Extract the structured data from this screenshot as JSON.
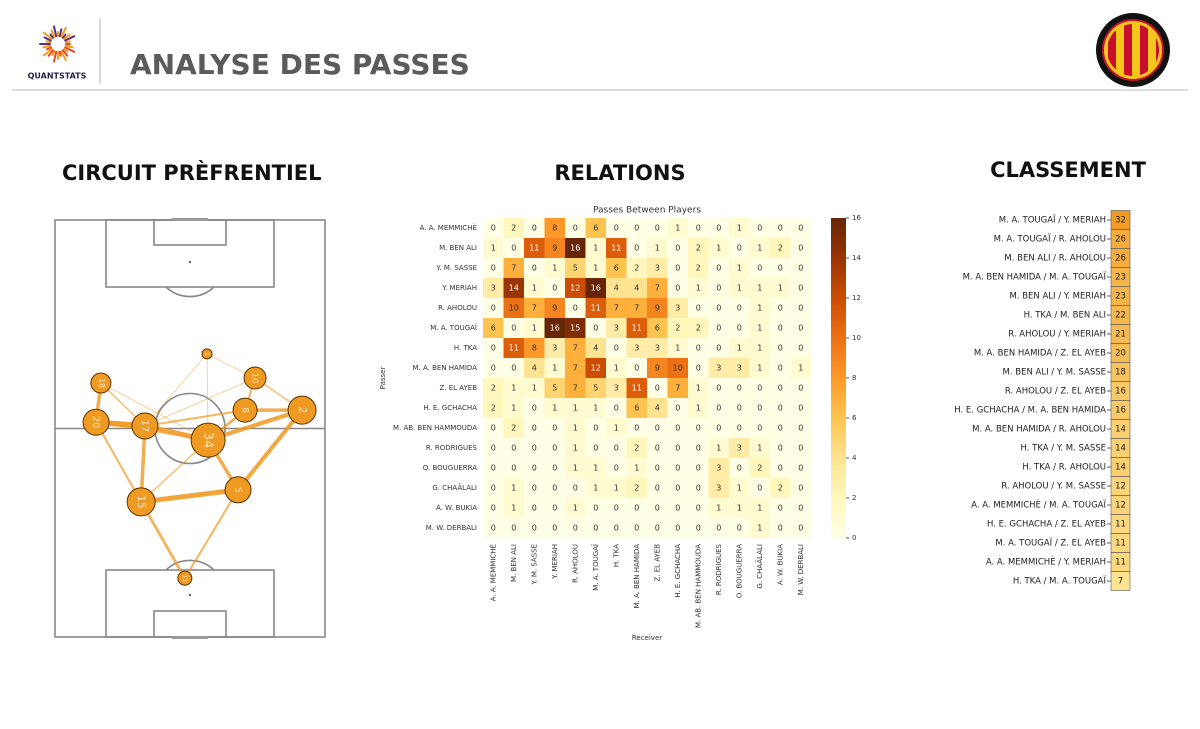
{
  "header": {
    "brand": "QUANTSTATS",
    "title": "ANALYSE DES PASSES"
  },
  "chart_data": [
    {
      "type": "network",
      "title": "CIRCUIT PRÈFRENTIEL",
      "color": "#ef9a22",
      "nodes": [
        {
          "label": 1,
          "x": 56.3,
          "y": 32.1,
          "size": 5
        },
        {
          "label": 10,
          "x": 74.1,
          "y": 37.9,
          "size": 11
        },
        {
          "label": 18,
          "x": 17.0,
          "y": 39.1,
          "size": 10
        },
        {
          "label": 8,
          "x": 70.4,
          "y": 45.6,
          "size": 12
        },
        {
          "label": 2,
          "x": 91.5,
          "y": 45.6,
          "size": 14
        },
        {
          "label": 20,
          "x": 15.2,
          "y": 48.5,
          "size": 13
        },
        {
          "label": 17,
          "x": 33.3,
          "y": 49.4,
          "size": 13
        },
        {
          "label": 34,
          "x": 56.7,
          "y": 52.8,
          "size": 17
        },
        {
          "label": 5,
          "x": 67.8,
          "y": 64.7,
          "size": 13
        },
        {
          "label": 15,
          "x": 31.9,
          "y": 67.6,
          "size": 14
        },
        {
          "label": 11,
          "x": 48.1,
          "y": 85.9,
          "size": 7
        }
      ],
      "edges": [
        {
          "source": 5,
          "target": 6,
          "weight": 8
        },
        {
          "source": 2,
          "target": 5,
          "weight": 5
        },
        {
          "source": 6,
          "target": 7,
          "weight": 7
        },
        {
          "source": 7,
          "target": 4,
          "weight": 6
        },
        {
          "source": 3,
          "target": 4,
          "weight": 5
        },
        {
          "source": 4,
          "target": 8,
          "weight": 6
        },
        {
          "source": 7,
          "target": 8,
          "weight": 5
        },
        {
          "source": 8,
          "target": 9,
          "weight": 7
        },
        {
          "source": 9,
          "target": 6,
          "weight": 5
        },
        {
          "source": 9,
          "target": 10,
          "weight": 4
        },
        {
          "source": 10,
          "target": 8,
          "weight": 3
        },
        {
          "source": 5,
          "target": 9,
          "weight": 3
        },
        {
          "source": 6,
          "target": 3,
          "weight": 3
        },
        {
          "source": 1,
          "target": 3,
          "weight": 3
        },
        {
          "source": 1,
          "target": 4,
          "weight": 2
        },
        {
          "source": 0,
          "target": 1,
          "weight": 1
        },
        {
          "source": 0,
          "target": 6,
          "weight": 1
        },
        {
          "source": 2,
          "target": 6,
          "weight": 2
        },
        {
          "source": 2,
          "target": 7,
          "weight": 1
        },
        {
          "source": 5,
          "target": 7,
          "weight": 2
        },
        {
          "source": 9,
          "target": 7,
          "weight": 2
        },
        {
          "source": 3,
          "target": 7,
          "weight": 4
        },
        {
          "source": 1,
          "target": 6,
          "weight": 1
        },
        {
          "source": 0,
          "target": 7,
          "weight": 1
        }
      ]
    },
    {
      "type": "heatmap",
      "title": "RELATIONS",
      "subtitle": "Passes Between Players",
      "xlabel": "Receiver",
      "ylabel": "Passer",
      "categories": [
        "A. A. MEMMICHÈ",
        "M. BEN ALI",
        "Y. M. SASSE",
        "Y. MERIAH",
        "R. AHOLOU",
        "M. A. TOUGAÏ",
        "H. TKA",
        "M. A. BEN HAMIDA",
        "Z. EL AYEB",
        "H. E. GCHACHA",
        "M. AB. BEN HAMMOUDA",
        "R. RODRIGUES",
        "O. BOUGUERRA",
        "G. CHAÂLALI",
        "A. W. BUKIA",
        "M. W. DERBALI"
      ],
      "matrix": [
        [
          0,
          2,
          0,
          8,
          0,
          6,
          0,
          0,
          0,
          1,
          0,
          0,
          1,
          0,
          0,
          0
        ],
        [
          1,
          0,
          11,
          9,
          16,
          1,
          11,
          0,
          1,
          0,
          2,
          1,
          0,
          1,
          2,
          0
        ],
        [
          0,
          7,
          0,
          1,
          5,
          1,
          6,
          2,
          3,
          0,
          2,
          0,
          1,
          0,
          0,
          0
        ],
        [
          3,
          14,
          1,
          0,
          12,
          16,
          4,
          4,
          7,
          0,
          1,
          0,
          1,
          1,
          1,
          0
        ],
        [
          0,
          10,
          7,
          9,
          0,
          11,
          7,
          7,
          9,
          3,
          0,
          0,
          0,
          1,
          0,
          0
        ],
        [
          6,
          0,
          1,
          16,
          15,
          0,
          3,
          11,
          6,
          2,
          2,
          0,
          0,
          1,
          0,
          0
        ],
        [
          0,
          11,
          8,
          3,
          7,
          4,
          0,
          3,
          3,
          1,
          0,
          0,
          1,
          1,
          0,
          0
        ],
        [
          0,
          0,
          4,
          1,
          7,
          12,
          1,
          0,
          9,
          10,
          0,
          3,
          3,
          1,
          0,
          1
        ],
        [
          2,
          1,
          1,
          5,
          7,
          5,
          3,
          11,
          0,
          7,
          1,
          0,
          0,
          0,
          0,
          0
        ],
        [
          2,
          1,
          0,
          1,
          1,
          1,
          0,
          6,
          4,
          0,
          1,
          0,
          0,
          0,
          0,
          0
        ],
        [
          0,
          2,
          0,
          0,
          1,
          0,
          1,
          0,
          0,
          0,
          0,
          0,
          0,
          0,
          0,
          0
        ],
        [
          0,
          0,
          0,
          0,
          1,
          0,
          0,
          2,
          0,
          0,
          0,
          1,
          3,
          1,
          0,
          0
        ],
        [
          0,
          0,
          0,
          0,
          1,
          1,
          0,
          1,
          0,
          0,
          0,
          3,
          0,
          2,
          0,
          0
        ],
        [
          0,
          1,
          0,
          0,
          0,
          1,
          1,
          2,
          0,
          0,
          0,
          3,
          1,
          0,
          2,
          0
        ],
        [
          0,
          1,
          0,
          0,
          1,
          0,
          0,
          0,
          0,
          0,
          0,
          1,
          1,
          1,
          0,
          0
        ],
        [
          0,
          0,
          0,
          0,
          0,
          0,
          0,
          0,
          0,
          0,
          0,
          0,
          0,
          1,
          0,
          0
        ]
      ],
      "colors": [
        "#ffffe5",
        "#fff7bc",
        "#fee391",
        "#fec44f",
        "#fe9929",
        "#ec7014",
        "#cc4c02",
        "#993404",
        "#662506"
      ],
      "clim": [
        0,
        16
      ],
      "cticks": [
        0,
        2,
        4,
        6,
        8,
        10,
        12,
        14,
        16
      ]
    },
    {
      "type": "ranking",
      "title": "CLASSEMENT",
      "categories": [
        "M. A. TOUGAÏ / Y. MERIAH",
        "M. A. TOUGAÏ / R. AHOLOU",
        "M. BEN ALI / R. AHOLOU",
        "M. A. BEN HAMIDA / M. A. TOUGAÏ",
        "M. BEN ALI / Y. MERIAH",
        "H. TKA / M. BEN ALI",
        "R. AHOLOU / Y. MERIAH",
        "M. A. BEN HAMIDA / Z. EL AYEB",
        "M. BEN ALI / Y. M. SASSE",
        "R. AHOLOU / Z. EL AYEB",
        "H. E. GCHACHA / M. A. BEN HAMIDA",
        "M. A. BEN HAMIDA / R. AHOLOU",
        "H. TKA / Y. M. SASSE",
        "H. TKA / R. AHOLOU",
        "R. AHOLOU / Y. M. SASSE",
        "A. A. MEMMICHÈ / M. A. TOUGAÏ",
        "H. E. GCHACHA / Z. EL AYEB",
        "M. A. TOUGAÏ / Z. EL AYEB",
        "A. A. MEMMICHÈ / Y. MERIAH",
        "H. TKA / M. A. TOUGAÏ"
      ],
      "values": [
        32,
        26,
        26,
        23,
        23,
        22,
        21,
        20,
        18,
        16,
        16,
        14,
        14,
        14,
        12,
        12,
        11,
        11,
        11,
        7
      ],
      "colors": [
        "#fde38e",
        "#f29a22"
      ]
    }
  ]
}
